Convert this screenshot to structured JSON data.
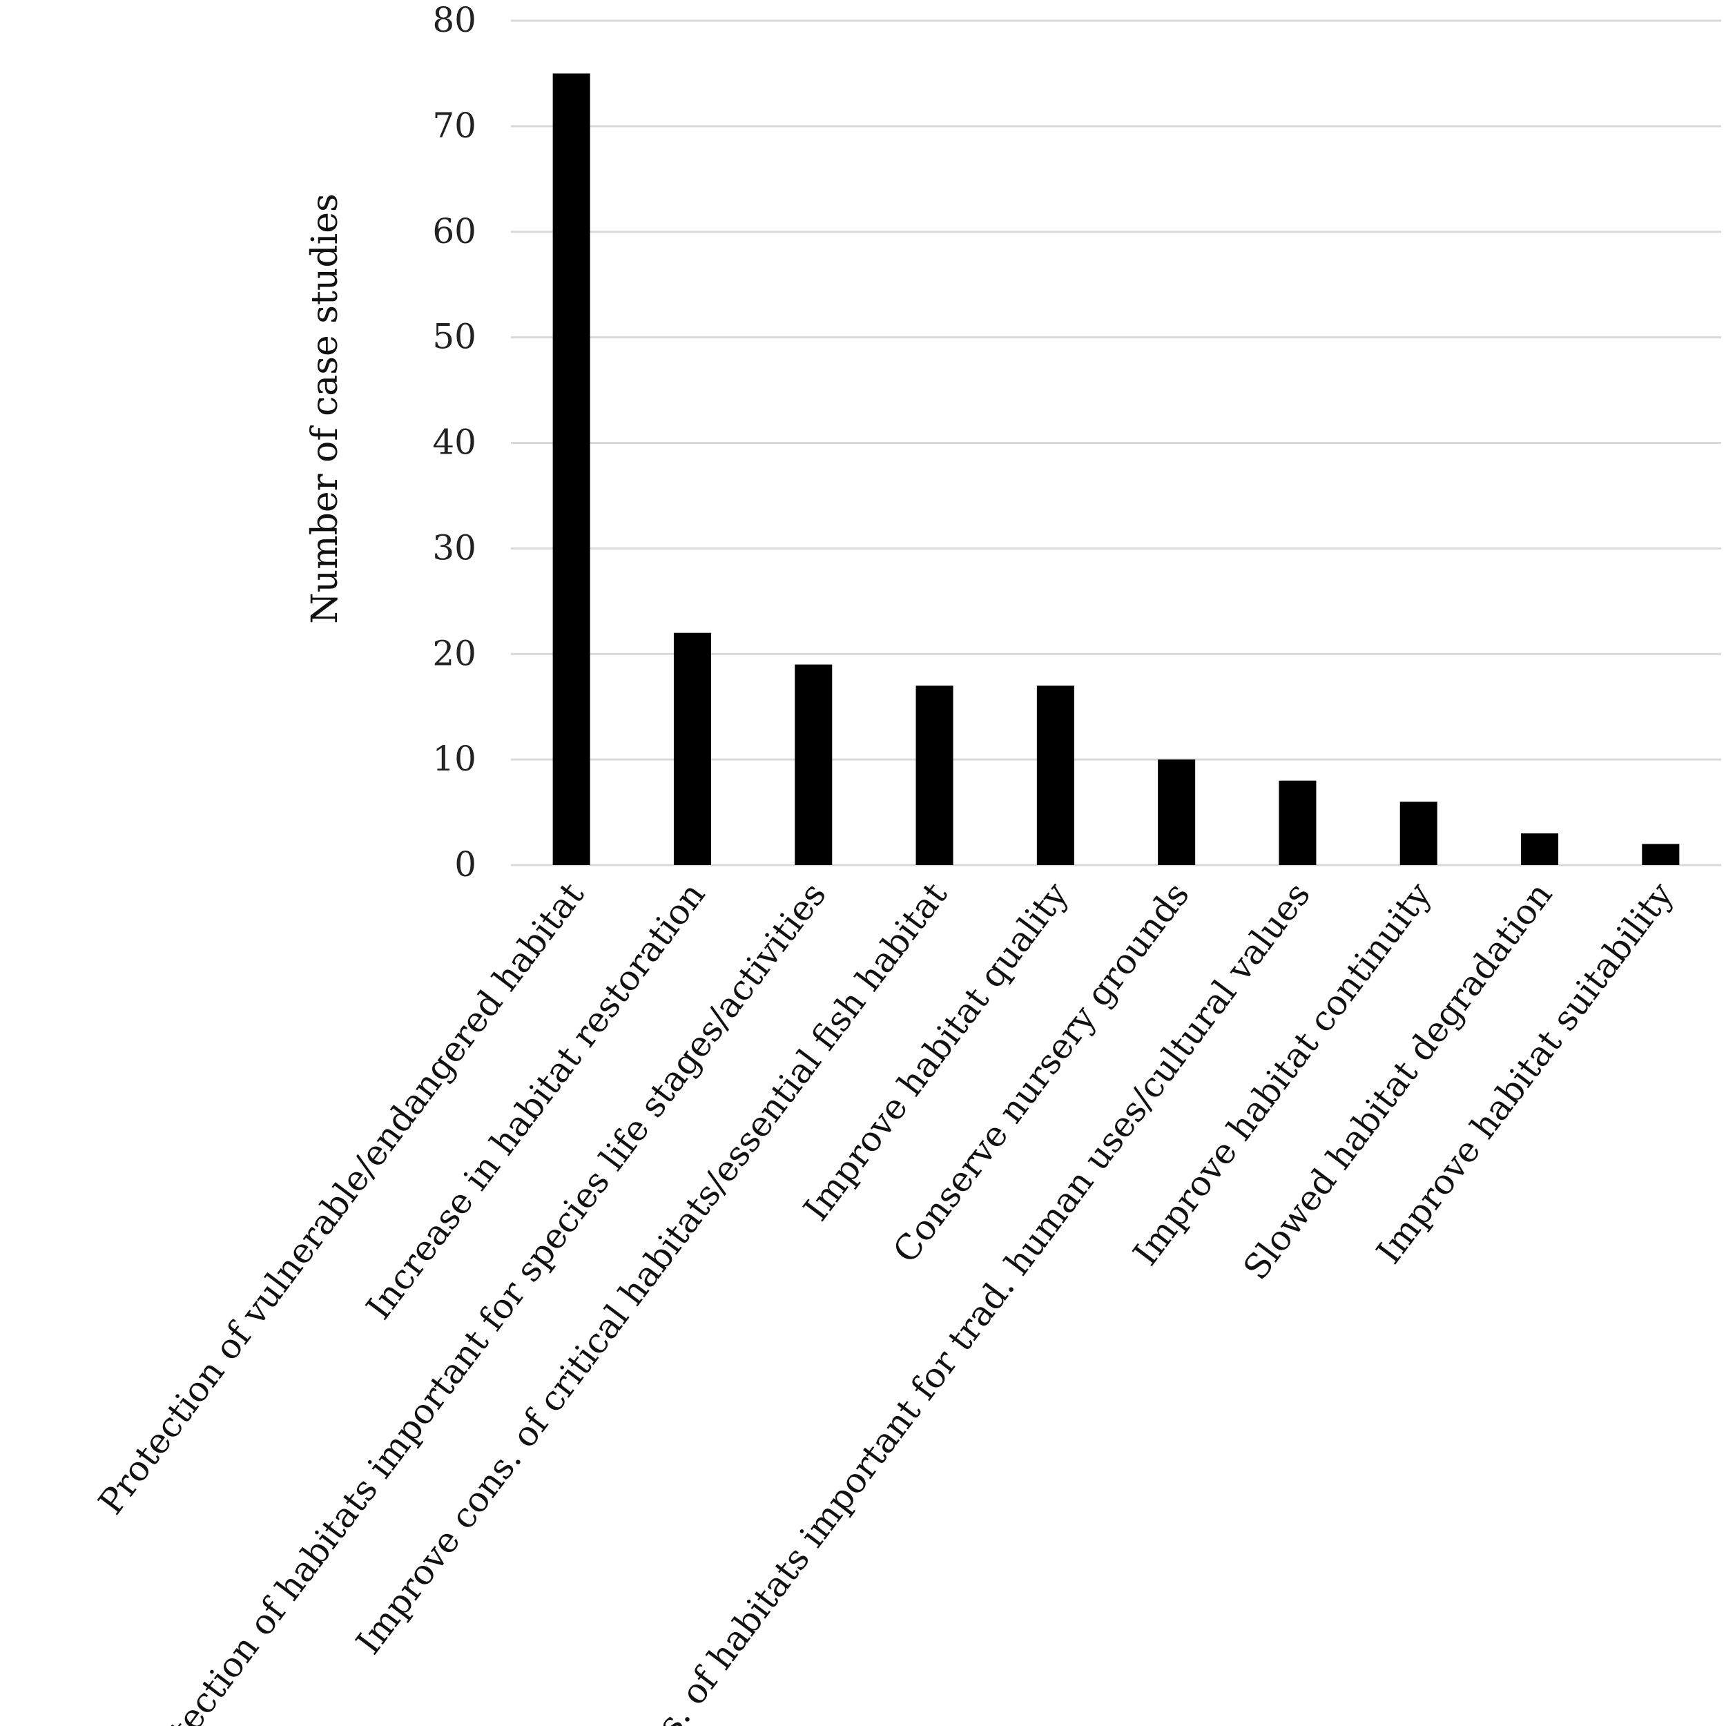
{
  "chart_data": {
    "type": "bar",
    "title": "",
    "xlabel": "",
    "ylabel": "Number of case studies",
    "ylim": [
      0,
      80
    ],
    "yticks": [
      0,
      10,
      20,
      30,
      40,
      50,
      60,
      70,
      80
    ],
    "grid": true,
    "legend": "none",
    "bar_color": "#000000",
    "grid_color": "#d9d9d9",
    "categories": [
      "Protection of vulnerable/endangered habitat",
      "Increase in habitat restoration",
      "Protection of habitats important for species life stages/activities",
      "Improve cons. of critical habitats/essential fish habitat",
      "Improve habitat quality",
      "Conserve nursery grounds",
      "Cons. of habitats important for trad. human uses/cultural values",
      "Improve habitat continuity",
      "Slowed habitat degradation",
      "Improve habitat suitability"
    ],
    "values": [
      75,
      22,
      19,
      17,
      17,
      10,
      8,
      6,
      3,
      2
    ]
  }
}
